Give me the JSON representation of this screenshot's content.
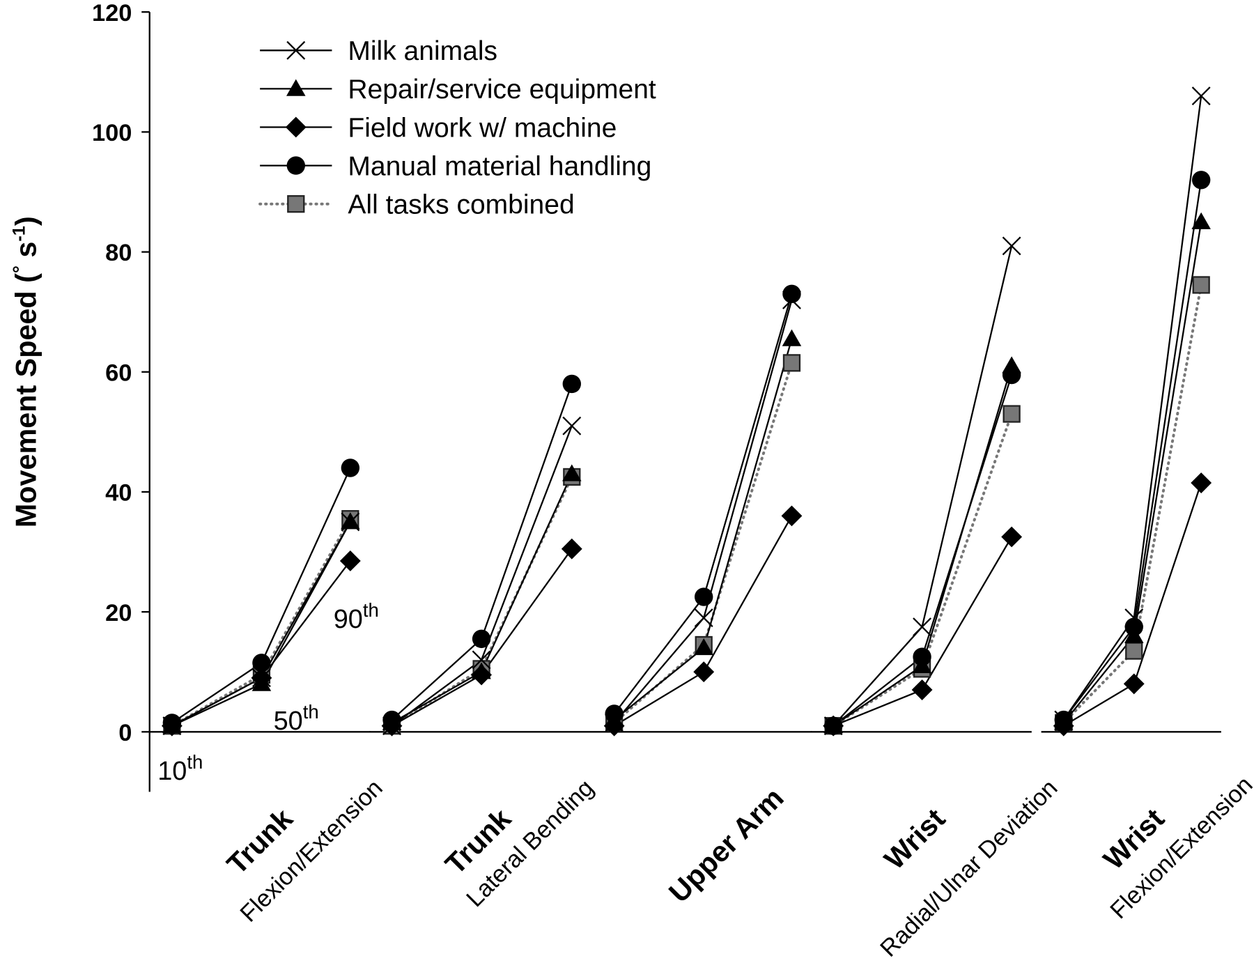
{
  "chart_data": {
    "type": "line",
    "title": "",
    "ylabel": "Movement Speed (° s-1)",
    "ylabel_parts": {
      "main": "Movement Speed (",
      "deg": "°",
      "unit": " s",
      "exp": "-1",
      "close": ")"
    },
    "ylim": [
      -10,
      120
    ],
    "yticks": [
      0,
      20,
      40,
      60,
      80,
      100,
      120
    ],
    "grid": false,
    "legend_position": "top-left",
    "percentile_labels": [
      {
        "num": "10",
        "sup": "th"
      },
      {
        "num": "50",
        "sup": "th"
      },
      {
        "num": "90",
        "sup": "th"
      }
    ],
    "x_points_per_group": [
      "10th",
      "50th",
      "90th"
    ],
    "groups": [
      {
        "name": "Trunk",
        "sub": "Flexion/Extension"
      },
      {
        "name": "Trunk",
        "sub": "Lateral Bending"
      },
      {
        "name": "Upper Arm",
        "sub": ""
      },
      {
        "name": "Wrist",
        "sub": "Radial/Ulnar Deviation"
      },
      {
        "name": "Wrist",
        "sub": "Flexion/Extension"
      }
    ],
    "series": [
      {
        "name": "Milk animals",
        "marker": "x",
        "line": "solid",
        "color": "#000000",
        "values": [
          [
            1,
            9,
            35
          ],
          [
            1,
            12,
            51
          ],
          [
            1.5,
            19,
            72
          ],
          [
            1,
            17.5,
            81
          ],
          [
            2,
            19,
            106
          ]
        ]
      },
      {
        "name": "Repair/service equipment",
        "marker": "triangle",
        "line": "solid",
        "color": "#000000",
        "values": [
          [
            1,
            8,
            35
          ],
          [
            1.5,
            10,
            43
          ],
          [
            2,
            14,
            65.5
          ],
          [
            1,
            11,
            61
          ],
          [
            1.5,
            16,
            85
          ]
        ]
      },
      {
        "name": "Field work w/ machine",
        "marker": "diamond",
        "line": "solid",
        "color": "#000000",
        "values": [
          [
            1,
            9,
            28.5
          ],
          [
            1,
            9.5,
            30.5
          ],
          [
            1,
            10,
            36
          ],
          [
            1,
            7,
            32.5
          ],
          [
            1,
            8,
            41.5
          ]
        ]
      },
      {
        "name": "Manual material handling",
        "marker": "circle",
        "line": "solid",
        "color": "#000000",
        "values": [
          [
            1.5,
            11.5,
            44
          ],
          [
            2,
            15.5,
            58
          ],
          [
            3,
            22.5,
            73
          ],
          [
            1,
            12.5,
            59.5
          ],
          [
            2,
            17.5,
            92
          ]
        ]
      },
      {
        "name": "All tasks combined",
        "marker": "square",
        "line": "dotted",
        "color": "#777777",
        "values": [
          [
            1,
            9.5,
            35.5
          ],
          [
            1,
            10.5,
            42.5
          ],
          [
            1.5,
            14.5,
            61.5
          ],
          [
            1,
            10.5,
            53
          ],
          [
            1.5,
            13.5,
            74.5
          ]
        ]
      }
    ]
  }
}
